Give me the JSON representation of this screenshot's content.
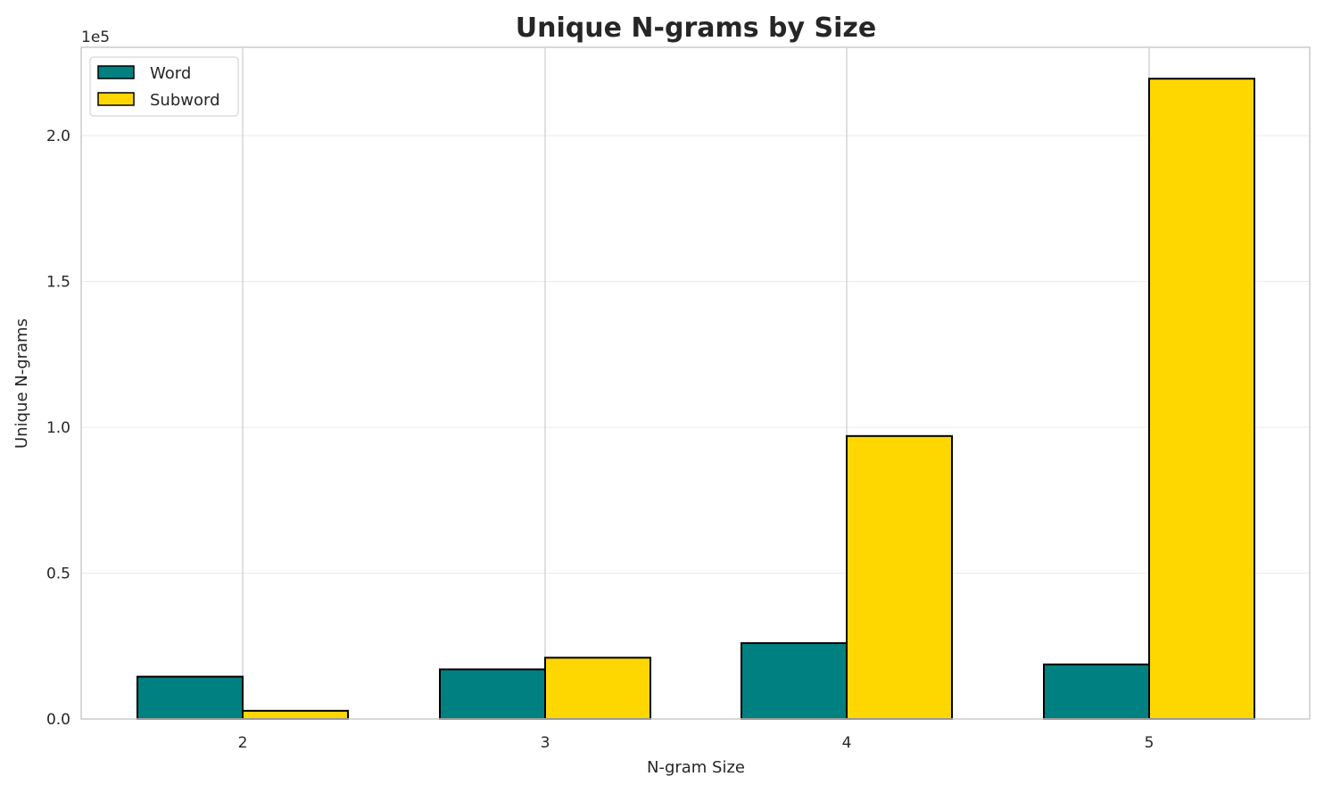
{
  "chart_data": {
    "type": "bar",
    "title": "Unique N-grams by Size",
    "xlabel": "N-gram Size",
    "ylabel": "Unique N-grams",
    "y_offset_label": "1e5",
    "categories": [
      "2",
      "3",
      "4",
      "5"
    ],
    "series": [
      {
        "name": "Word",
        "color": "#008080",
        "values": [
          14500,
          17000,
          26000,
          18700
        ]
      },
      {
        "name": "Subword",
        "color": "#FFD700",
        "values": [
          2800,
          21000,
          97000,
          219500
        ]
      }
    ],
    "ylim": [
      0,
      230000
    ],
    "yticks": [
      0,
      50000,
      100000,
      150000,
      200000
    ],
    "ytick_labels": [
      "0.0",
      "0.5",
      "1.0",
      "1.5",
      "2.0"
    ],
    "grid": true,
    "legend": "top-left"
  }
}
